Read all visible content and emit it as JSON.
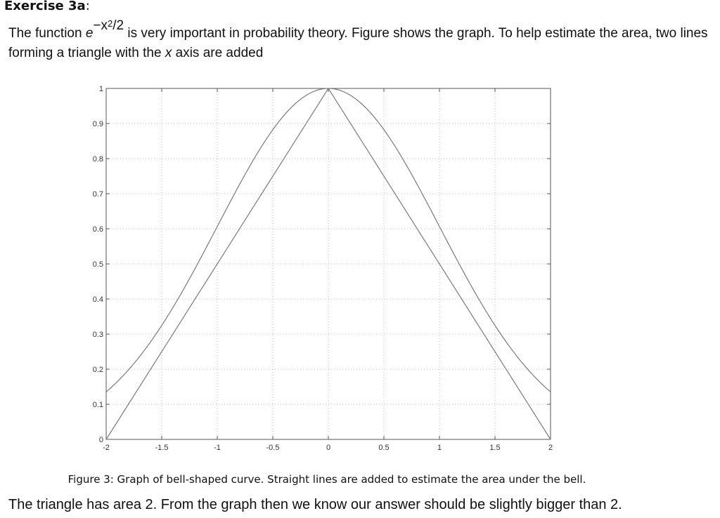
{
  "heading": {
    "label": "Exercise 3a",
    "colon": ":"
  },
  "paragraph": {
    "before": "The function ",
    "func_base": "e",
    "func_exp_pre": "−x",
    "func_exp_sup": "2",
    "func_exp_post": "/2",
    "after_func": " is very important in probability theory. Figure  shows the graph. To help estimate the area, two lines forming a triangle with the ",
    "x_var": "x",
    "after_x": " axis are added"
  },
  "caption": "Figure 3: Graph of bell-shaped curve. Straight lines are added to estimate the area under the bell.",
  "conclusion": "The triangle has area 2. From the graph then we know our answer should be slightly bigger than 2.",
  "chart_data": {
    "type": "line",
    "title": "",
    "xlabel": "",
    "ylabel": "",
    "xlim": [
      -2,
      2
    ],
    "ylim": [
      0,
      1
    ],
    "grid": true,
    "x_ticks": [
      -2,
      -1.5,
      -1,
      -0.5,
      0,
      0.5,
      1,
      1.5,
      2
    ],
    "x_tick_labels": [
      "-2",
      "-1.5",
      "-1",
      "-0.5",
      "0",
      "0.5",
      "1",
      "1.5",
      "2"
    ],
    "y_ticks": [
      0,
      0.1,
      0.2,
      0.3,
      0.4,
      0.5,
      0.6,
      0.7,
      0.8,
      0.9,
      1
    ],
    "y_tick_labels": [
      "0",
      "0.1",
      "0.2",
      "0.3",
      "0.4",
      "0.5",
      "0.6",
      "0.7",
      "0.8",
      "0.9",
      "1"
    ],
    "series": [
      {
        "function": "exp(-x^2/2)",
        "x": [
          -2,
          -1.75,
          -1.5,
          -1.25,
          -1,
          -0.75,
          -0.5,
          -0.25,
          0,
          0.25,
          0.5,
          0.75,
          1,
          1.25,
          1.5,
          1.75,
          2
        ],
        "y": [
          0.135,
          0.216,
          0.325,
          0.458,
          0.607,
          0.755,
          0.882,
          0.969,
          1,
          0.969,
          0.882,
          0.755,
          0.607,
          0.458,
          0.325,
          0.216,
          0.135
        ]
      },
      {
        "shape": "triangle",
        "x": [
          -2,
          0,
          2
        ],
        "y": [
          0,
          1,
          0
        ]
      }
    ],
    "line_color": "#7a7a7a",
    "grid_color": "#bbbbbb"
  }
}
